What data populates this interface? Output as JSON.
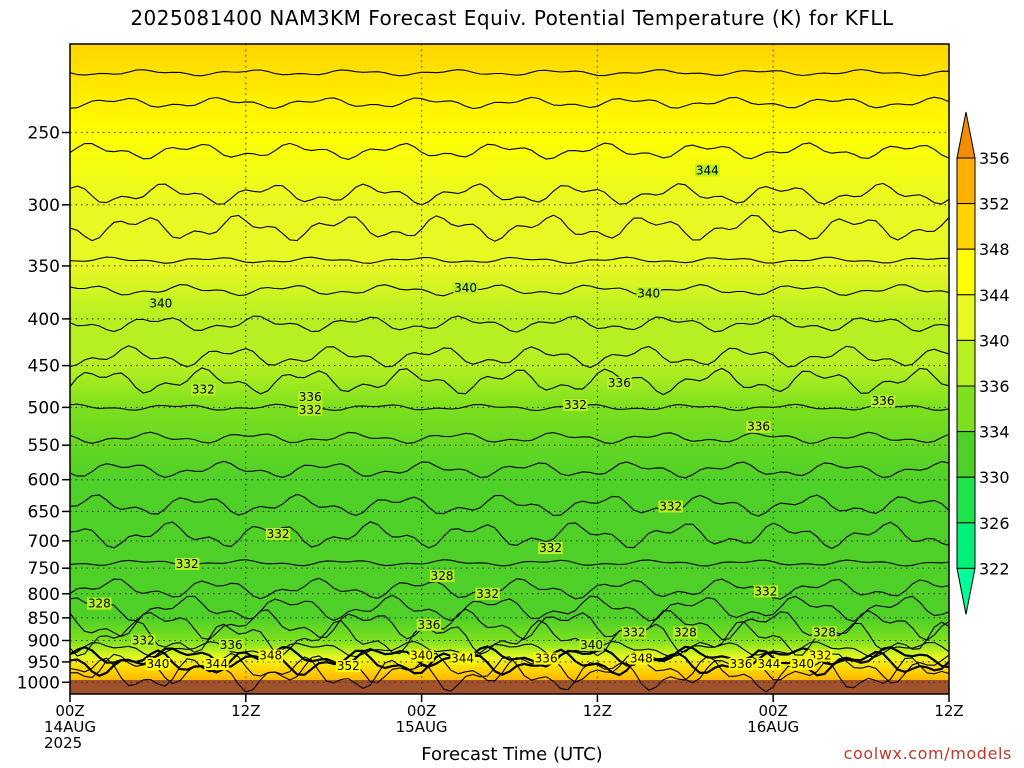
{
  "chart_data": {
    "type": "heatmap",
    "title": "2025081400 NAM3KM Forecast Equiv. Potential Temperature (K) for KFLL",
    "xlabel": "Forecast Time (UTC)",
    "ylabel": "",
    "variable": "Equivalent Potential Temperature (K)",
    "x_ticks": [
      {
        "hour": 0,
        "lines": [
          "00Z",
          "14AUG",
          "2025"
        ]
      },
      {
        "hour": 12,
        "lines": [
          "12Z"
        ]
      },
      {
        "hour": 24,
        "lines": [
          "00Z",
          "15AUG"
        ]
      },
      {
        "hour": 36,
        "lines": [
          "12Z"
        ]
      },
      {
        "hour": 48,
        "lines": [
          "00Z",
          "16AUG"
        ]
      },
      {
        "hour": 60,
        "lines": [
          "12Z"
        ]
      }
    ],
    "xlim": [
      0,
      60
    ],
    "y_ticks": [
      250,
      300,
      350,
      400,
      450,
      500,
      550,
      600,
      650,
      700,
      750,
      800,
      850,
      900,
      950,
      1000
    ],
    "ylim": [
      200,
      1030
    ],
    "y_scale": "log",
    "grid": true,
    "colorbar": {
      "levels": [
        322,
        326,
        330,
        334,
        336,
        340,
        344,
        348,
        352,
        356
      ],
      "colors": [
        "#00f07a",
        "#1ee34a",
        "#4fd028",
        "#7de01e",
        "#b6f022",
        "#e8f823",
        "#ffff00",
        "#ffd400",
        "#ffb000",
        "#ff9400"
      ],
      "below_color": "#00ff99",
      "above_color": "#f28c00",
      "labels": [
        "322",
        "326",
        "330",
        "334",
        "336",
        "340",
        "344",
        "348",
        "352",
        "356"
      ],
      "placement": "right"
    },
    "vertical_profile": [
      {
        "p": 200,
        "theta_e": 350
      },
      {
        "p": 250,
        "theta_e": 345
      },
      {
        "p": 300,
        "theta_e": 342
      },
      {
        "p": 350,
        "theta_e": 340
      },
      {
        "p": 400,
        "theta_e": 338
      },
      {
        "p": 450,
        "theta_e": 336
      },
      {
        "p": 500,
        "theta_e": 334
      },
      {
        "p": 600,
        "theta_e": 333
      },
      {
        "p": 700,
        "theta_e": 332
      },
      {
        "p": 800,
        "theta_e": 331
      },
      {
        "p": 850,
        "theta_e": 330
      },
      {
        "p": 900,
        "theta_e": 334
      },
      {
        "p": 940,
        "theta_e": 341
      },
      {
        "p": 970,
        "theta_e": 350
      },
      {
        "p": 1000,
        "theta_e": 354
      }
    ],
    "contour_labels": [
      {
        "text": "344",
        "hour": 43.5,
        "p": 275
      },
      {
        "text": "340",
        "hour": 6.2,
        "p": 385
      },
      {
        "text": "340",
        "hour": 27.0,
        "p": 370
      },
      {
        "text": "340",
        "hour": 39.5,
        "p": 375
      },
      {
        "text": "332",
        "hour": 9.1,
        "p": 478
      },
      {
        "text": "336",
        "hour": 16.4,
        "p": 487
      },
      {
        "text": "332",
        "hour": 16.4,
        "p": 503
      },
      {
        "text": "336",
        "hour": 37.5,
        "p": 470
      },
      {
        "text": "332",
        "hour": 34.5,
        "p": 497
      },
      {
        "text": "336",
        "hour": 55.5,
        "p": 492
      },
      {
        "text": "336",
        "hour": 47.0,
        "p": 525
      },
      {
        "text": "332",
        "hour": 41.0,
        "p": 642
      },
      {
        "text": "332",
        "hour": 14.2,
        "p": 688
      },
      {
        "text": "332",
        "hour": 32.8,
        "p": 713
      },
      {
        "text": "332",
        "hour": 8.0,
        "p": 742
      },
      {
        "text": "328",
        "hour": 25.4,
        "p": 765
      },
      {
        "text": "332",
        "hour": 28.5,
        "p": 800
      },
      {
        "text": "332",
        "hour": 47.5,
        "p": 795
      },
      {
        "text": "328",
        "hour": 2.0,
        "p": 820
      },
      {
        "text": "336",
        "hour": 24.5,
        "p": 865
      },
      {
        "text": "332",
        "hour": 38.5,
        "p": 882
      },
      {
        "text": "328",
        "hour": 42.0,
        "p": 882
      },
      {
        "text": "328",
        "hour": 51.5,
        "p": 882
      },
      {
        "text": "332",
        "hour": 5.0,
        "p": 900
      },
      {
        "text": "336",
        "hour": 11.0,
        "p": 910
      },
      {
        "text": "340",
        "hour": 35.6,
        "p": 910
      },
      {
        "text": "348",
        "hour": 13.7,
        "p": 935
      },
      {
        "text": "340",
        "hour": 24.0,
        "p": 935
      },
      {
        "text": "344",
        "hour": 26.8,
        "p": 942
      },
      {
        "text": "336",
        "hour": 32.5,
        "p": 942
      },
      {
        "text": "348",
        "hour": 39.0,
        "p": 942
      },
      {
        "text": "332",
        "hour": 51.2,
        "p": 935
      },
      {
        "text": "340",
        "hour": 6.0,
        "p": 955
      },
      {
        "text": "344",
        "hour": 10.0,
        "p": 955
      },
      {
        "text": "352",
        "hour": 19.0,
        "p": 960
      },
      {
        "text": "336",
        "hour": 45.8,
        "p": 955
      },
      {
        "text": "344",
        "hour": 47.7,
        "p": 955
      },
      {
        "text": "340",
        "hour": 50.0,
        "p": 955
      }
    ]
  },
  "credit": "coolwx.com/models"
}
